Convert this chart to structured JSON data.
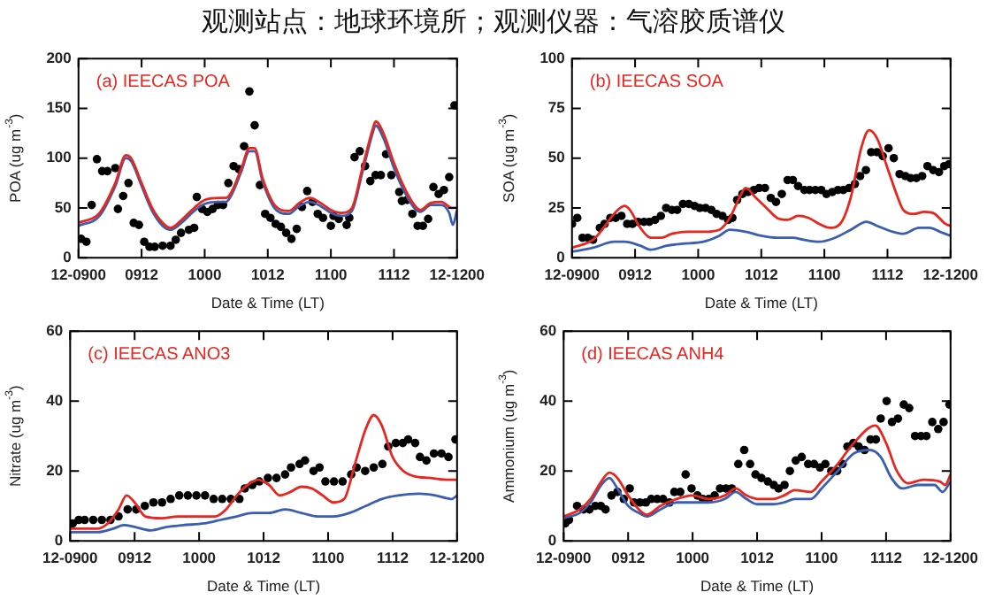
{
  "chart_data": [
    {
      "type": "line",
      "title": "观测站点：地球环境所；观测仪器：气溶胶质谱仪",
      "annotations": [
        "(a) IEECAS POA"
      ],
      "xlabel": "Date & Time (LT)",
      "ylabel": "POA (ug m$^{-3}$)",
      "xlim": [
        "--12-09T00:00",
        "--12-12T00:00"
      ],
      "xticks": [
        {
          "value": "--12-09T00:00",
          "label": "12-0900"
        },
        {
          "value": "--12-09T12:00",
          "label": "0912"
        },
        {
          "value": "--12-10T00:00",
          "label": "1000"
        },
        {
          "value": "--12-10T12:00",
          "label": "1012"
        },
        {
          "value": "--12-11T00:00",
          "label": "1100"
        },
        {
          "value": "--12-11T12:00",
          "label": "1112"
        },
        {
          "value": "--12-12T00:00",
          "label": "12-1200"
        }
      ],
      "ylim": [
        0,
        200
      ],
      "yticks": [
        0,
        50,
        100,
        150,
        200
      ],
      "series": [
        {
          "type": "scatter",
          "color": "#000000",
          "x": [
            "--12-09T00:30",
            "--12-09T01:30",
            "--12-09T02:30",
            "--12-09T03:30",
            "--12-09T04:30",
            "--12-09T05:30",
            "--12-09T07:00",
            "--12-09T07:30",
            "--12-09T08:30",
            "--12-09T09:30",
            "--12-09T10:30",
            "--12-09T11:30",
            "--12-09T12:30",
            "--12-09T13:30",
            "--12-09T14:30",
            "--12-09T16:00",
            "--12-09T17:30",
            "--12-09T18:30",
            "--12-09T19:30",
            "--12-09T21:00",
            "--12-09T22:00",
            "--12-09T22:30",
            "--12-09T23:30",
            "--12-10T00:30",
            "--12-10T01:30",
            "--12-10T02:30",
            "--12-10T03:30",
            "--12-10T04:30",
            "--12-10T05:30",
            "--12-10T06:30",
            "--12-10T07:30",
            "--12-10T08:30",
            "--12-10T09:30",
            "--12-10T10:30",
            "--12-10T11:30",
            "--12-10T12:30",
            "--12-10T13:30",
            "--12-10T14:30",
            "--12-10T15:30",
            "--12-10T16:30",
            "--12-10T17:30",
            "--12-10T18:30",
            "--12-10T19:30",
            "--12-10T20:30",
            "--12-10T21:30",
            "--12-10T22:30",
            "--12-11T00:00",
            "--12-11T00:30",
            "--12-11T01:30",
            "--12-11T03:00",
            "--12-11T03:30",
            "--12-11T04:30",
            "--12-11T05:30",
            "--12-11T06:30",
            "--12-11T07:30",
            "--12-11T08:30",
            "--12-11T09:30",
            "--12-11T10:30",
            "--12-11T11:30",
            "--12-11T13:00",
            "--12-11T13:30",
            "--12-11T14:30",
            "--12-11T15:30",
            "--12-11T16:30",
            "--12-11T17:30",
            "--12-11T18:30",
            "--12-11T19:30",
            "--12-11T20:30",
            "--12-11T21:30",
            "--12-11T22:30",
            "--12-11T23:30"
          ],
          "values": [
            19,
            16,
            53,
            99,
            87,
            87,
            90,
            49,
            62,
            75,
            35,
            33,
            16,
            11,
            11,
            12,
            12,
            18,
            25,
            28,
            30,
            61,
            49,
            46,
            49,
            53,
            53,
            75,
            92,
            89,
            112,
            167,
            133,
            73,
            44,
            40,
            34,
            31,
            25,
            19,
            29,
            51,
            67,
            56,
            44,
            40,
            32,
            42,
            39,
            33,
            40,
            101,
            107,
            92,
            77,
            83,
            83,
            104,
            83,
            66,
            57,
            58,
            44,
            32,
            32,
            39,
            71,
            64,
            68,
            81,
            153
          ]
        },
        {
          "type": "line",
          "color": "#e8261f",
          "x": [
            "--12-09T00:00",
            "--12-09T04:00",
            "--12-09T07:00",
            "--12-09T09:00",
            "--12-09T10:00",
            "--12-09T12:00",
            "--12-09T14:00",
            "--12-09T16:00",
            "--12-09T17:30",
            "--12-09T20:00",
            "--12-09T22:00",
            "--12-10T00:00",
            "--12-10T03:00",
            "--12-10T04:00",
            "--12-10T05:00",
            "--12-10T07:00",
            "--12-10T08:30",
            "--12-10T09:30",
            "--12-10T11:00",
            "--12-10T13:00",
            "--12-10T14:30",
            "--12-10T16:00",
            "--12-10T18:00",
            "--12-10T20:00",
            "--12-10T22:00",
            "--12-11T00:00",
            "--12-11T02:00",
            "--12-11T04:00",
            "--12-11T06:00",
            "--12-11T08:00",
            "--12-11T08:30",
            "--12-11T10:00",
            "--12-11T12:00",
            "--12-11T14:00",
            "--12-11T16:00",
            "--12-11T17:00",
            "--12-11T19:00",
            "--12-11T21:00",
            "--12-11T23:00",
            "--12-12T00:00"
          ],
          "values": [
            35,
            45,
            75,
            103,
            100,
            75,
            50,
            35,
            30,
            40,
            50,
            58,
            60,
            60,
            65,
            90,
            110,
            110,
            80,
            55,
            48,
            47,
            55,
            60,
            55,
            48,
            45,
            50,
            90,
            130,
            137,
            125,
            95,
            70,
            52,
            48,
            55,
            56,
            50,
            50
          ]
        },
        {
          "type": "line",
          "color": "#3a5eb0",
          "x": [
            "--12-09T00:00",
            "--12-09T04:00",
            "--12-09T07:00",
            "--12-09T09:00",
            "--12-09T10:00",
            "--12-09T12:00",
            "--12-09T14:00",
            "--12-09T16:00",
            "--12-09T17:30",
            "--12-09T20:00",
            "--12-09T22:00",
            "--12-10T00:00",
            "--12-10T03:00",
            "--12-10T04:00",
            "--12-10T05:00",
            "--12-10T07:00",
            "--12-10T08:30",
            "--12-10T09:30",
            "--12-10T11:00",
            "--12-10T13:00",
            "--12-10T14:30",
            "--12-10T16:00",
            "--12-10T18:00",
            "--12-10T20:00",
            "--12-10T22:00",
            "--12-11T00:00",
            "--12-11T02:00",
            "--12-11T04:00",
            "--12-11T06:00",
            "--12-11T08:00",
            "--12-11T08:30",
            "--12-11T10:00",
            "--12-11T12:00",
            "--12-11T14:00",
            "--12-11T16:00",
            "--12-11T17:00",
            "--12-11T19:00",
            "--12-11T21:00",
            "--12-11T22:30",
            "--12-11T23:12",
            "--12-12T00:00"
          ],
          "values": [
            32,
            42,
            72,
            100,
            97,
            72,
            47,
            32,
            28,
            37,
            47,
            54,
            56,
            56,
            62,
            87,
            107,
            107,
            77,
            52,
            45,
            44,
            52,
            56,
            52,
            45,
            42,
            47,
            86,
            126,
            133,
            120,
            90,
            66,
            49,
            46,
            53,
            53,
            45,
            33,
            48
          ]
        }
      ]
    },
    {
      "type": "line",
      "annotations": [
        "(b) IEECAS SOA"
      ],
      "xlabel": "Date & Time (LT)",
      "ylabel": "SOA (ug m$^{-3}$)",
      "xlim": [
        "--12-09T00:00",
        "--12-12T00:00"
      ],
      "xticks": [
        {
          "value": "--12-09T00:00",
          "label": "12-0900"
        },
        {
          "value": "--12-09T12:00",
          "label": "0912"
        },
        {
          "value": "--12-10T00:00",
          "label": "1000"
        },
        {
          "value": "--12-10T12:00",
          "label": "1012"
        },
        {
          "value": "--12-11T00:00",
          "label": "1100"
        },
        {
          "value": "--12-11T12:00",
          "label": "1112"
        },
        {
          "value": "--12-12T00:00",
          "label": "12-1200"
        }
      ],
      "ylim": [
        0,
        100
      ],
      "yticks": [
        0,
        25,
        50,
        75,
        100
      ],
      "series": [
        {
          "type": "scatter",
          "color": "#000000",
          "x": [
            "--12-09T00:00",
            "--12-09T01:00",
            "--12-09T02:00",
            "--12-09T03:00",
            "--12-09T04:00",
            "--12-09T05:18",
            "--12-09T06:12",
            "--12-09T07:18",
            "--12-09T08:18",
            "--12-09T09:24",
            "--12-09T10:30",
            "--12-09T11:30",
            "--12-09T12:36",
            "--12-09T13:42",
            "--12-09T14:42",
            "--12-09T15:48",
            "--12-09T16:54",
            "--12-09T17:54",
            "--12-09T19:00",
            "--12-09T20:00",
            "--12-09T21:06",
            "--12-09T22:12",
            "--12-09T23:18",
            "--12-10T00:18",
            "--12-10T01:24",
            "--12-10T02:30",
            "--12-10T03:30",
            "--12-10T04:36",
            "--12-10T05:42",
            "--12-10T06:30",
            "--12-10T07:24",
            "--12-10T08:24",
            "--12-10T09:30",
            "--12-10T10:36",
            "--12-10T11:36",
            "--12-10T12:42",
            "--12-10T13:48",
            "--12-10T14:48",
            "--12-10T15:54",
            "--12-10T17:00",
            "--12-10T18:00",
            "--12-10T19:00",
            "--12-10T20:12",
            "--12-10T21:12",
            "--12-10T22:18",
            "--12-10T23:24",
            "--12-11T00:24",
            "--12-11T01:30",
            "--12-11T02:36",
            "--12-11T03:36",
            "--12-11T04:42",
            "--12-11T05:48",
            "--12-11T06:48",
            "--12-11T07:54",
            "--12-11T08:54",
            "--12-11T10:00",
            "--12-11T11:06",
            "--12-11T12:12",
            "--12-11T13:12",
            "--12-11T14:18",
            "--12-11T15:24",
            "--12-11T16:24",
            "--12-11T17:30",
            "--12-11T18:36",
            "--12-11T19:36",
            "--12-11T20:42",
            "--12-11T21:48",
            "--12-11T22:48",
            "--12-11T23:42"
          ],
          "values": [
            17,
            20,
            10,
            10,
            9,
            15,
            17,
            20,
            20,
            21,
            17,
            17,
            18,
            18,
            18,
            19,
            21,
            25,
            24,
            24,
            27,
            27,
            26,
            25,
            25,
            24,
            22,
            21,
            19,
            20,
            29,
            32,
            33,
            34,
            35,
            35,
            30,
            28,
            32,
            39,
            39,
            36,
            34,
            34,
            34,
            34,
            32,
            33,
            34,
            34,
            35,
            37,
            41,
            44,
            53,
            53,
            51,
            55,
            50,
            42,
            41,
            40,
            40,
            41,
            46,
            44,
            43,
            46,
            47
          ]
        },
        {
          "type": "line",
          "color": "#e8261f",
          "x": [
            "--12-09T00:00",
            "--12-09T04:00",
            "--12-09T06:00",
            "--12-09T08:00",
            "--12-09T10:00",
            "--12-09T11:00",
            "--12-09T13:00",
            "--12-09T15:00",
            "--12-09T17:00",
            "--12-09T19:00",
            "--12-09T22:00",
            "--12-10T01:00",
            "--12-10T04:00",
            "--12-10T06:00",
            "--12-10T08:00",
            "--12-10T09:00",
            "--12-10T11:00",
            "--12-10T13:00",
            "--12-10T15:00",
            "--12-10T17:00",
            "--12-10T19:00",
            "--12-10T21:00",
            "--12-10T23:00",
            "--12-11T01:00",
            "--12-11T03:00",
            "--12-11T05:00",
            "--12-11T07:00",
            "--12-11T08:30",
            "--12-11T10:00",
            "--12-11T12:00",
            "--12-11T14:00",
            "--12-11T15:00",
            "--12-11T17:00",
            "--12-11T19:00",
            "--12-11T21:00",
            "--12-11T23:00",
            "--12-12T00:00"
          ],
          "values": [
            5,
            9,
            15,
            22,
            26,
            24,
            15,
            10,
            10,
            12,
            13,
            13,
            14,
            20,
            31,
            35,
            30,
            25,
            20,
            19,
            21,
            20,
            17,
            15,
            17,
            30,
            55,
            64,
            60,
            45,
            30,
            24,
            22,
            23,
            22,
            17,
            16
          ]
        },
        {
          "type": "line",
          "color": "#3a5eb0",
          "x": [
            "--12-09T00:00",
            "--12-09T04:00",
            "--12-09T08:00",
            "--12-09T10:00",
            "--12-09T13:00",
            "--12-09T15:00",
            "--12-09T18:00",
            "--12-09T21:00",
            "--12-10T01:00",
            "--12-10T04:00",
            "--12-10T06:00",
            "--12-10T09:00",
            "--12-10T12:00",
            "--12-10T15:00",
            "--12-10T18:00",
            "--12-10T20:00",
            "--12-10T23:00",
            "--12-11T02:00",
            "--12-11T05:00",
            "--12-11T08:00",
            "--12-11T10:00",
            "--12-11T13:00",
            "--12-11T15:00",
            "--12-11T18:00",
            "--12-11T20:00",
            "--12-11T22:00",
            "--12-12T00:00"
          ],
          "values": [
            3,
            5,
            8,
            8,
            6,
            4,
            6,
            7,
            8,
            11,
            14,
            13,
            11,
            10,
            10,
            9,
            8,
            10,
            14,
            18,
            16,
            13,
            12,
            15,
            15,
            13,
            11
          ]
        }
      ]
    },
    {
      "type": "line",
      "annotations": [
        "(c) IEECAS ANO3"
      ],
      "xlabel": "Date & Time (LT)",
      "ylabel": "Nitrate (ug m$^{-3}$)",
      "xlim": [
        "--12-09T00:00",
        "--12-12T00:00"
      ],
      "xticks": [
        {
          "value": "--12-09T00:00",
          "label": "12-0900"
        },
        {
          "value": "--12-09T12:00",
          "label": "0912"
        },
        {
          "value": "--12-10T00:00",
          "label": "1000"
        },
        {
          "value": "--12-10T12:00",
          "label": "1012"
        },
        {
          "value": "--12-11T00:00",
          "label": "1100"
        },
        {
          "value": "--12-11T12:00",
          "label": "1112"
        },
        {
          "value": "--12-12T00:00",
          "label": "12-1200"
        }
      ],
      "ylim": [
        0,
        60
      ],
      "yticks": [
        0,
        20,
        40,
        60
      ],
      "series": [
        {
          "type": "scatter",
          "color": "#000000",
          "x": [
            "--12-09T00:30",
            "--12-09T01:36",
            "--12-09T02:42",
            "--12-09T04:18",
            "--12-09T05:54",
            "--12-09T07:30",
            "--12-09T09:00",
            "--12-09T10:42",
            "--12-09T12:18",
            "--12-09T13:54",
            "--12-09T15:30",
            "--12-09T17:06",
            "--12-09T18:42",
            "--12-09T20:18",
            "--12-09T21:54",
            "--12-09T23:30",
            "--12-10T01:06",
            "--12-10T02:42",
            "--12-10T04:18",
            "--12-10T05:54",
            "--12-10T07:30",
            "--12-10T08:30",
            "--12-10T09:54",
            "--12-10T11:12",
            "--12-10T12:48",
            "--12-10T14:24",
            "--12-10T16:00",
            "--12-10T17:06",
            "--12-10T18:42",
            "--12-10T19:42",
            "--12-10T21:18",
            "--12-10T22:24",
            "--12-10T23:30",
            "--12-11T01:06",
            "--12-11T02:42",
            "--12-11T04:18",
            "--12-11T05:18",
            "--12-11T06:54",
            "--12-11T08:30",
            "--12-11T10:06",
            "--12-11T11:12",
            "--12-11T12:36",
            "--12-11T13:54",
            "--12-11T14:54",
            "--12-11T16:12",
            "--12-11T17:06",
            "--12-11T18:18",
            "--12-11T19:42",
            "--12-11T21:06",
            "--12-11T22:24",
            "--12-11T23:42"
          ],
          "values": [
            5,
            6,
            6,
            6,
            6,
            6,
            7,
            9,
            9,
            10,
            11,
            11,
            12,
            13,
            13,
            13,
            13,
            12,
            12,
            12,
            12,
            15,
            16,
            17,
            18,
            18,
            19,
            21,
            22,
            23,
            20,
            21,
            17,
            17,
            17,
            19,
            21,
            20,
            21,
            22,
            27,
            28,
            28,
            29,
            28,
            24,
            23,
            25,
            25,
            24,
            29
          ]
        },
        {
          "type": "line",
          "color": "#e8261f",
          "x": [
            "--12-09T00:00",
            "--12-09T05:00",
            "--12-09T07:00",
            "--12-09T09:00",
            "--12-09T10:30",
            "--12-09T12:00",
            "--12-09T14:00",
            "--12-09T17:00",
            "--12-09T20:00",
            "--12-10T00:00",
            "--12-10T03:00",
            "--12-10T05:00",
            "--12-10T07:00",
            "--12-10T09:00",
            "--12-10T11:00",
            "--12-10T13:00",
            "--12-10T15:00",
            "--12-10T17:00",
            "--12-10T19:00",
            "--12-10T21:00",
            "--12-10T23:00",
            "--12-11T01:00",
            "--12-11T03:00",
            "--12-11T05:00",
            "--12-11T07:00",
            "--12-11T08:30",
            "--12-11T10:00",
            "--12-11T12:00",
            "--12-11T14:00",
            "--12-11T16:00",
            "--12-11T19:00",
            "--12-11T22:00",
            "--12-12T00:00"
          ],
          "values": [
            3.5,
            3.5,
            5,
            9,
            13,
            11,
            7,
            6.5,
            7,
            7,
            7,
            9,
            13,
            16,
            17.5,
            16,
            13,
            14,
            15.5,
            15,
            13,
            11,
            12,
            22,
            32,
            36,
            33,
            24,
            20,
            18.5,
            18,
            17.5,
            17.5
          ]
        },
        {
          "type": "line",
          "color": "#3a5eb0",
          "x": [
            "--12-09T00:00",
            "--12-09T05:00",
            "--12-09T08:00",
            "--12-09T10:00",
            "--12-09T12:00",
            "--12-09T15:00",
            "--12-09T18:00",
            "--12-09T21:00",
            "--12-10T01:00",
            "--12-10T04:00",
            "--12-10T07:00",
            "--12-10T10:00",
            "--12-10T13:00",
            "--12-10T16:00",
            "--12-10T19:00",
            "--12-10T22:00",
            "--12-11T01:00",
            "--12-11T04:00",
            "--12-11T07:00",
            "--12-11T10:00",
            "--12-11T13:00",
            "--12-11T17:00",
            "--12-11T20:00",
            "--12-11T23:00",
            "--12-12T00:00"
          ],
          "values": [
            2.5,
            2.5,
            3.5,
            4.5,
            4,
            3,
            4,
            4.5,
            5,
            6,
            7,
            8,
            8,
            9,
            8,
            7,
            7,
            8,
            10,
            12,
            13,
            13.5,
            13,
            12,
            13
          ]
        }
      ]
    },
    {
      "type": "line",
      "annotations": [
        "(d) IEECAS ANH4"
      ],
      "xlabel": "Date & Time (LT)",
      "ylabel": "Ammonium (ug m$^{-3}$)",
      "xlim": [
        "--12-09T00:00",
        "--12-12T00:00"
      ],
      "xticks": [
        {
          "value": "--12-09T00:00",
          "label": "12-0900"
        },
        {
          "value": "--12-09T12:00",
          "label": "0912"
        },
        {
          "value": "--12-10T00:00",
          "label": "1000"
        },
        {
          "value": "--12-10T12:00",
          "label": "1012"
        },
        {
          "value": "--12-11T00:00",
          "label": "1100"
        },
        {
          "value": "--12-11T12:00",
          "label": "1112"
        },
        {
          "value": "--12-12T00:00",
          "label": "12-1200"
        }
      ],
      "ylim": [
        0,
        60
      ],
      "yticks": [
        0,
        20,
        40,
        60
      ],
      "series": [
        {
          "type": "scatter",
          "color": "#000000",
          "x": [
            "--12-09T00:18",
            "--12-09T01:00",
            "--12-09T02:30",
            "--12-09T03:42",
            "--12-09T04:48",
            "--12-09T05:54",
            "--12-09T06:54",
            "--12-09T07:48",
            "--12-09T08:54",
            "--12-09T10:00",
            "--12-09T11:12",
            "--12-09T12:18",
            "--12-09T13:06",
            "--12-09T14:12",
            "--12-09T15:18",
            "--12-09T16:18",
            "--12-09T17:24",
            "--12-09T18:30",
            "--12-09T19:42",
            "--12-09T20:36",
            "--12-09T21:42",
            "--12-09T22:42",
            "--12-09T23:48",
            "--12-10T00:54",
            "--12-10T01:54",
            "--12-10T03:00",
            "--12-10T04:06",
            "--12-10T05:06",
            "--12-10T06:12",
            "--12-10T07:18",
            "--12-10T08:30",
            "--12-10T09:36",
            "--12-10T10:42",
            "--12-10T11:42",
            "--12-10T12:48",
            "--12-10T14:00",
            "--12-10T15:06",
            "--12-10T16:00",
            "--12-10T17:06",
            "--12-10T18:06",
            "--12-10T19:12",
            "--12-10T20:18",
            "--12-10T21:30",
            "--12-10T22:36",
            "--12-10T23:42",
            "--12-11T00:42",
            "--12-11T01:48",
            "--12-11T02:54",
            "--12-11T03:54",
            "--12-11T04:48",
            "--12-11T05:54",
            "--12-11T06:54",
            "--12-11T08:00",
            "--12-11T09:06",
            "--12-11T10:06",
            "--12-11T11:00",
            "--12-11T12:06",
            "--12-11T13:06",
            "--12-11T14:12",
            "--12-11T15:18",
            "--12-11T16:18",
            "--12-11T17:24",
            "--12-11T18:30",
            "--12-11T19:30",
            "--12-11T20:36",
            "--12-11T21:42",
            "--12-11T22:42",
            "--12-11T23:48"
          ],
          "values": [
            5,
            6,
            10,
            9,
            9,
            10,
            10,
            9,
            13,
            14,
            12,
            15,
            11,
            11,
            11,
            12,
            12,
            12,
            11,
            14,
            14,
            19,
            15,
            13,
            12,
            12,
            13,
            15,
            15,
            15,
            22,
            26,
            22,
            19,
            18,
            17,
            16,
            15,
            16,
            20,
            23,
            24,
            22,
            22,
            21,
            22,
            20,
            20,
            22,
            27,
            28,
            27,
            26,
            29,
            29,
            35,
            40,
            34,
            35,
            39,
            38,
            30,
            30,
            30,
            34,
            32,
            34,
            39
          ]
        },
        {
          "type": "line",
          "color": "#e8261f",
          "x": [
            "--12-09T00:00",
            "--12-09T03:00",
            "--12-09T05:00",
            "--12-09T07:00",
            "--12-09T08:30",
            "--12-09T10:00",
            "--12-09T12:00",
            "--12-09T14:00",
            "--12-09T15:30",
            "--12-09T18:00",
            "--12-09T21:00",
            "--12-10T00:00",
            "--12-10T03:00",
            "--12-10T06:00",
            "--12-10T08:00",
            "--12-10T10:00",
            "--12-10T12:00",
            "--12-10T15:00",
            "--12-10T17:00",
            "--12-10T19:00",
            "--12-10T22:00",
            "--12-11T00:00",
            "--12-11T03:00",
            "--12-11T06:00",
            "--12-11T10:00",
            "--12-11T12:00",
            "--12-11T14:00",
            "--12-11T16:00",
            "--12-11T19:00",
            "--12-11T22:00",
            "--12-11T23:00",
            "--12-12T00:00"
          ],
          "values": [
            7,
            9,
            12,
            17,
            19.5,
            18,
            13,
            9,
            7.5,
            10,
            12,
            13,
            12,
            13,
            15,
            13,
            12,
            12,
            13,
            14.5,
            14,
            17,
            22,
            28,
            33,
            28,
            20,
            16.5,
            17.5,
            17,
            16,
            19
          ]
        },
        {
          "type": "line",
          "color": "#3a5eb0",
          "x": [
            "--12-09T00:00",
            "--12-09T03:00",
            "--12-09T05:00",
            "--12-09T07:00",
            "--12-09T08:30",
            "--12-09T10:00",
            "--12-09T12:00",
            "--12-09T14:00",
            "--12-09T15:30",
            "--12-09T18:00",
            "--12-09T21:00",
            "--12-10T00:00",
            "--12-10T03:00",
            "--12-10T06:00",
            "--12-10T08:00",
            "--12-10T10:00",
            "--12-10T12:00",
            "--12-10T15:00",
            "--12-10T17:00",
            "--12-10T19:00",
            "--12-10T22:00",
            "--12-11T00:00",
            "--12-11T03:00",
            "--12-11T06:00",
            "--12-11T09:00",
            "--12-11T11:00",
            "--12-11T13:00",
            "--12-11T15:00",
            "--12-11T18:00",
            "--12-11T21:00",
            "--12-11T22:30",
            "--12-12T00:00"
          ],
          "values": [
            6.5,
            8,
            11,
            16,
            18,
            15,
            10,
            8,
            7,
            9,
            11,
            11,
            11,
            12,
            14,
            12,
            10.5,
            10.5,
            11,
            12,
            12,
            15,
            20,
            25,
            26,
            24,
            18,
            15,
            16,
            16,
            14,
            17
          ]
        }
      ]
    }
  ]
}
